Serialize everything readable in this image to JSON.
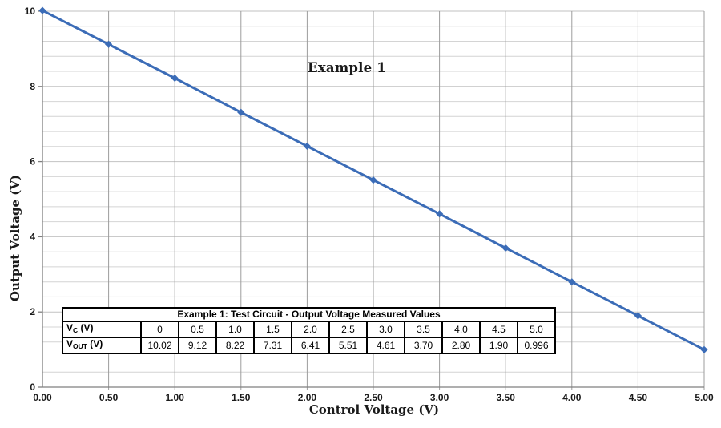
{
  "chart_data": {
    "type": "line",
    "title": "Example 1",
    "xlabel": "Control Voltage (V)",
    "ylabel": "Output Voltage (V)",
    "x": [
      0,
      0.5,
      1.0,
      1.5,
      2.0,
      2.5,
      3.0,
      3.5,
      4.0,
      4.5,
      5.0
    ],
    "series": [
      {
        "name": "Output Voltage Measured Values",
        "values": [
          10.02,
          9.12,
          8.22,
          7.31,
          6.41,
          5.51,
          4.61,
          3.7,
          2.8,
          1.9,
          0.996
        ]
      }
    ],
    "xlim": [
      0,
      5
    ],
    "ylim": [
      0,
      10
    ],
    "x_major_step": 0.5,
    "y_major_step": 2,
    "y_minor_step": 0.4,
    "x_tick_labels": [
      "0.00",
      "0.50",
      "1.00",
      "1.50",
      "2.00",
      "2.50",
      "3.00",
      "3.50",
      "4.00",
      "4.50",
      "5.00"
    ],
    "y_tick_labels": [
      "0",
      "2",
      "4",
      "6",
      "8",
      "10"
    ],
    "grid": "on",
    "legend": "none",
    "marker": "diamond",
    "colors": {
      "line": "#3b6cb7",
      "grid_h": "#d4d4d4",
      "grid_h_major": "#c2c2c2",
      "grid_v": "#9c9c9c",
      "axis": "#7f7f7f",
      "text": "#1a1a1a"
    }
  },
  "table": {
    "title": "Example 1: Test Circuit - Output Voltage Measured Values",
    "rows": [
      {
        "label": {
          "base": "V",
          "sub": "C",
          "unit": " (V)"
        },
        "values": [
          "0",
          "0.5",
          "1.0",
          "1.5",
          "2.0",
          "2.5",
          "3.0",
          "3.5",
          "4.0",
          "4.5",
          "5.0"
        ]
      },
      {
        "label": {
          "base": "V",
          "sub": "OUT",
          "unit": " (V)"
        },
        "values": [
          "10.02",
          "9.12",
          "8.22",
          "7.31",
          "6.41",
          "5.51",
          "4.61",
          "3.70",
          "2.80",
          "1.90",
          "0.996"
        ]
      }
    ]
  }
}
